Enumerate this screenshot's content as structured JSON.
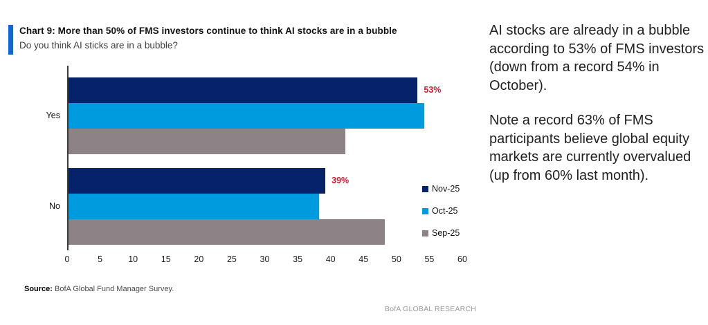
{
  "title_block": {
    "title": "Chart 9: More than 50% of FMS investors continue to think AI stocks are in a bubble",
    "subtitle": "Do you think AI sticks are in a bubble?",
    "accent_color": "#1464D2"
  },
  "chart_data": {
    "type": "bar",
    "orientation": "horizontal",
    "categories": [
      "Yes",
      "No"
    ],
    "series": [
      {
        "name": "Nov-25",
        "color": "#06226A",
        "values": [
          53,
          39
        ]
      },
      {
        "name": "Oct-25",
        "color": "#009ADE",
        "values": [
          54,
          38
        ]
      },
      {
        "name": "Sep-25",
        "color": "#8D8387",
        "values": [
          42,
          48
        ]
      }
    ],
    "value_labels": [
      {
        "category": "Yes",
        "series": "Nov-25",
        "text": "53%"
      },
      {
        "category": "No",
        "series": "Nov-25",
        "text": "39%"
      }
    ],
    "value_label_color": "#D01A32",
    "x_ticks": [
      0,
      5,
      10,
      15,
      20,
      25,
      30,
      35,
      40,
      45,
      50,
      55,
      60
    ],
    "xlim": [
      0,
      60
    ],
    "grid": false,
    "legend_position": "right"
  },
  "commentary": {
    "paragraph1": "AI stocks are already in a bubble according to 53% of FMS investors (down from a record 54% in October).",
    "paragraph2": "Note a record 63% of FMS participants believe global equity markets are currently overvalued (up from 60% last month)."
  },
  "footer": {
    "source_label": "Source:",
    "source_text": " BofA Global Fund Manager Survey.",
    "brand": "BofA GLOBAL RESEARCH"
  }
}
